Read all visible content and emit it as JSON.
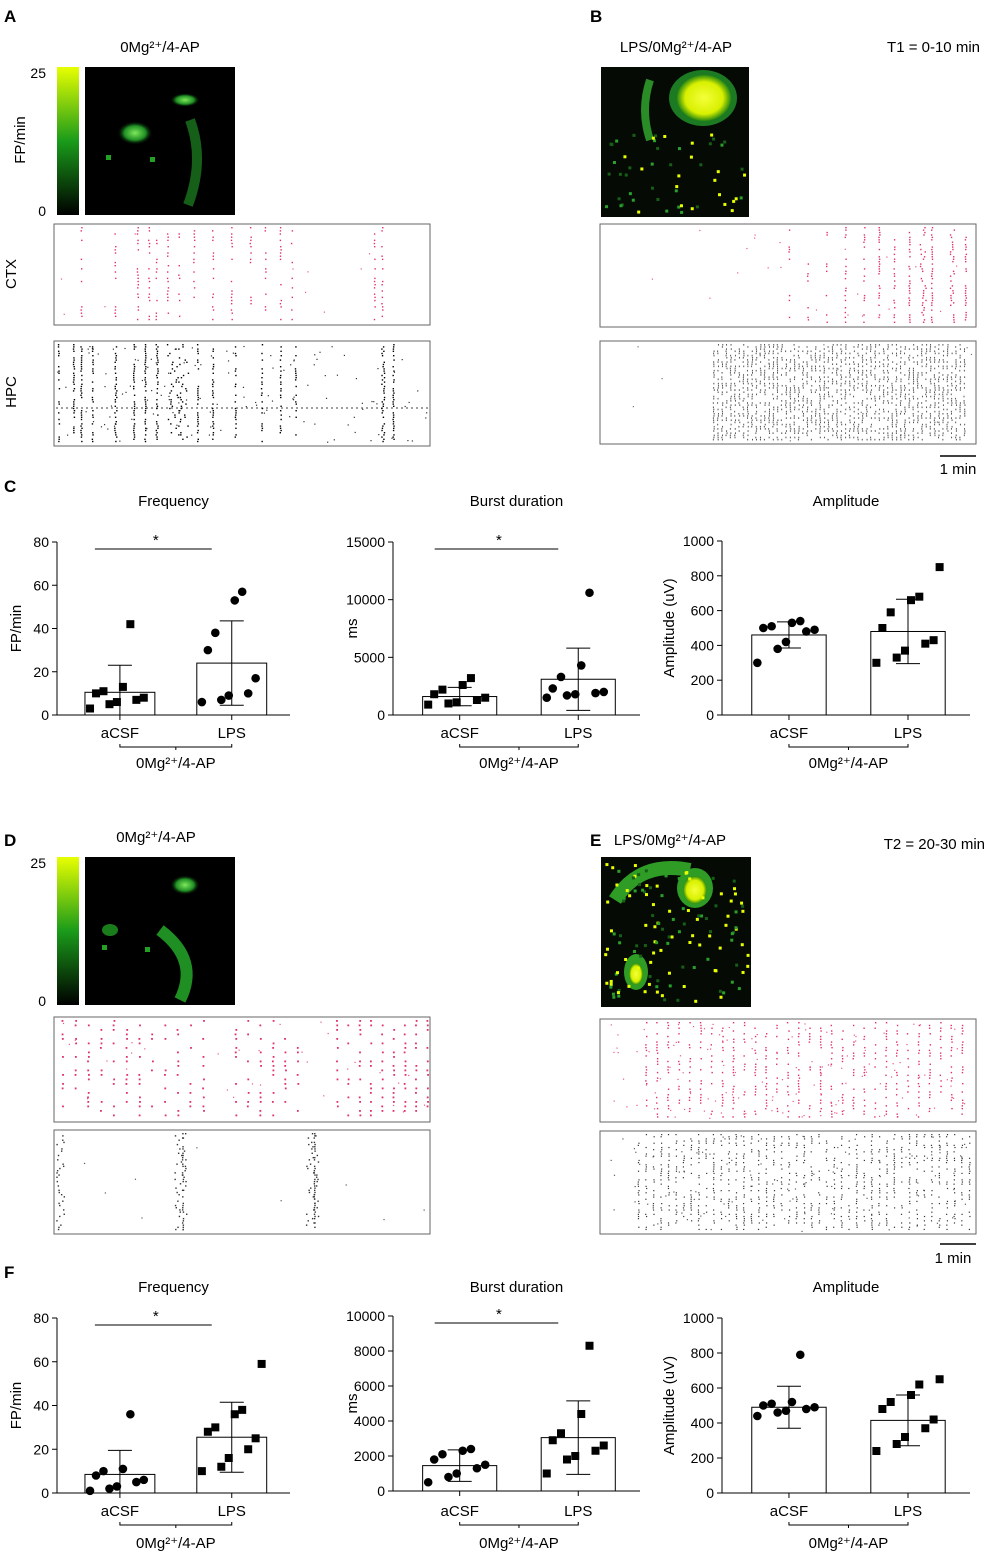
{
  "panels": {
    "A": {
      "letter": "A",
      "condition": "0Mg²⁺/4-AP",
      "colorbar_max": "25",
      "colorbar_min": "0",
      "colorbar_label": "FP/min",
      "row_labels": [
        "CTX",
        "HPC"
      ]
    },
    "B": {
      "letter": "B",
      "condition": "LPS/0Mg²⁺/4-AP",
      "time": "T1 = 0-10 min",
      "scale": "1 min"
    },
    "C": {
      "letter": "C"
    },
    "D": {
      "letter": "D",
      "condition": "0Mg²⁺/4-AP",
      "colorbar_max": "25",
      "colorbar_min": "0"
    },
    "E": {
      "letter": "E",
      "condition": "LPS/0Mg²⁺/4-AP",
      "time": "T2 = 20-30 min",
      "scale": "1 min"
    },
    "F": {
      "letter": "F"
    }
  },
  "colors": {
    "heat_low": "#000000",
    "heat_mid": "#1a9b1a",
    "heat_high": "#e8ff00",
    "ctx_raster": "#e0306e",
    "hpc_raster": "#000000"
  },
  "chart_data": [
    {
      "id": "C-frequency",
      "type": "bar",
      "title": "Frequency",
      "ylabel": "FP/min",
      "ylim": [
        0,
        80
      ],
      "yticks": [
        0,
        20,
        40,
        60,
        80
      ],
      "categories": [
        "aCSF",
        "LPS"
      ],
      "group_label": "0Mg²⁺/4-AP",
      "means": [
        10.5,
        24
      ],
      "sd": [
        12.5,
        19.5
      ],
      "significance": "*",
      "markers": [
        "square",
        "circle"
      ],
      "points": [
        [
          3,
          5,
          6,
          7,
          8,
          10,
          11,
          13,
          42
        ],
        [
          6,
          7,
          9,
          10,
          17,
          30,
          38,
          53,
          57
        ]
      ]
    },
    {
      "id": "C-burst",
      "type": "bar",
      "title": "Burst duration",
      "ylabel": "ms",
      "ylim": [
        0,
        15000
      ],
      "yticks": [
        0,
        5000,
        10000,
        15000
      ],
      "categories": [
        "aCSF",
        "LPS"
      ],
      "group_label": "0Mg²⁺/4-AP",
      "means": [
        1600,
        3100
      ],
      "sd": [
        800,
        2700
      ],
      "significance": "*",
      "markers": [
        "square",
        "circle"
      ],
      "points": [
        [
          900,
          1000,
          1100,
          1300,
          1500,
          1800,
          2200,
          2600,
          3200
        ],
        [
          1500,
          1700,
          1800,
          1900,
          2000,
          2300,
          3300,
          4300,
          10600
        ]
      ]
    },
    {
      "id": "C-amplitude",
      "type": "bar",
      "title": "Amplitude",
      "ylabel": "Amplitude (uV)",
      "ylim": [
        0,
        1000
      ],
      "yticks": [
        0,
        200,
        400,
        600,
        800,
        1000
      ],
      "categories": [
        "aCSF",
        "LPS"
      ],
      "group_label": "0Mg²⁺/4-AP",
      "means": [
        460,
        480
      ],
      "sd": [
        75,
        185
      ],
      "significance": "",
      "markers": [
        "circle",
        "square"
      ],
      "points": [
        [
          300,
          380,
          420,
          480,
          490,
          500,
          510,
          530,
          540
        ],
        [
          300,
          330,
          370,
          410,
          430,
          500,
          590,
          660,
          680,
          850
        ]
      ]
    },
    {
      "id": "F-frequency",
      "type": "bar",
      "title": "Frequency",
      "ylabel": "FP/min",
      "ylim": [
        0,
        80
      ],
      "yticks": [
        0,
        20,
        40,
        60,
        80
      ],
      "categories": [
        "aCSF",
        "LPS"
      ],
      "group_label": "0Mg²⁺/4-AP",
      "means": [
        8.5,
        25.5
      ],
      "sd": [
        11,
        16
      ],
      "significance": "*",
      "markers": [
        "circle",
        "square"
      ],
      "points": [
        [
          1,
          2,
          3,
          5,
          6,
          8,
          10,
          11,
          36
        ],
        [
          10,
          12,
          16,
          20,
          25,
          28,
          30,
          36,
          38,
          59
        ]
      ]
    },
    {
      "id": "F-burst",
      "type": "bar",
      "title": "Burst duration",
      "ylabel": "ms",
      "ylim": [
        0,
        10000
      ],
      "yticks": [
        0,
        2000,
        4000,
        6000,
        8000,
        10000
      ],
      "categories": [
        "aCSF",
        "LPS"
      ],
      "group_label": "0Mg²⁺/4-AP",
      "means": [
        1450,
        3050
      ],
      "sd": [
        900,
        2100
      ],
      "significance": "*",
      "markers": [
        "circle",
        "square"
      ],
      "points": [
        [
          500,
          800,
          1000,
          1300,
          1500,
          1800,
          2100,
          2300,
          2400
        ],
        [
          1000,
          1800,
          2000,
          2300,
          2600,
          2900,
          3300,
          4400,
          8300
        ]
      ]
    },
    {
      "id": "F-amplitude",
      "type": "bar",
      "title": "Amplitude",
      "ylabel": "Amplitude (uV)",
      "ylim": [
        0,
        1000
      ],
      "yticks": [
        0,
        200,
        400,
        600,
        800,
        1000
      ],
      "categories": [
        "aCSF",
        "LPS"
      ],
      "group_label": "0Mg²⁺/4-AP",
      "means": [
        490,
        415
      ],
      "sd": [
        120,
        145
      ],
      "significance": "",
      "markers": [
        "circle",
        "square"
      ],
      "points": [
        [
          440,
          460,
          470,
          480,
          490,
          500,
          510,
          520,
          790
        ],
        [
          240,
          280,
          320,
          370,
          420,
          480,
          520,
          560,
          620,
          650
        ]
      ]
    }
  ]
}
